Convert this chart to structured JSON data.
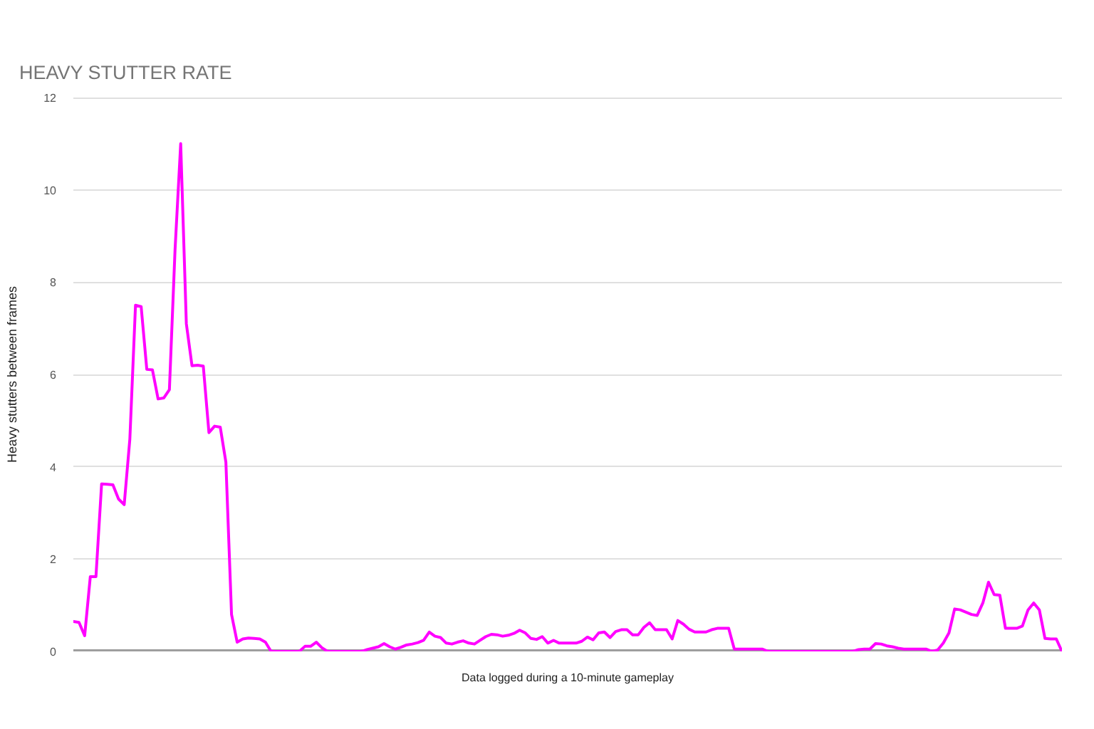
{
  "chart_data": {
    "type": "line",
    "title": "HEAVY STUTTER RATE",
    "xlabel": "Data logged during a 10-minute gameplay",
    "ylabel": "Heavy stutters between frames",
    "categories": [
      null,
      null,
      null,
      null,
      null,
      null,
      null,
      null,
      null,
      null,
      null,
      null,
      null,
      null,
      null,
      null,
      null,
      null,
      null,
      null,
      null,
      null,
      null,
      null,
      null,
      null,
      null,
      null,
      null,
      null,
      null,
      null,
      null,
      null,
      null,
      null,
      null,
      null,
      null,
      null,
      null,
      null,
      null,
      null,
      null,
      null,
      null,
      null,
      null,
      null,
      null,
      null,
      null,
      null,
      null,
      null,
      null,
      null,
      null,
      null,
      null,
      null,
      null,
      null,
      null,
      null,
      null,
      null,
      null,
      null,
      null,
      null,
      null,
      null,
      null,
      null,
      null,
      null,
      null,
      null,
      null,
      null,
      null,
      null,
      null,
      null,
      null,
      null,
      null,
      null,
      null,
      null,
      null,
      null,
      null,
      null,
      null,
      null,
      null,
      null,
      null,
      null,
      null,
      null,
      null,
      null,
      null,
      null,
      null,
      null,
      null,
      null,
      null,
      null,
      null,
      null,
      null,
      null,
      null,
      null,
      null,
      null,
      null,
      null,
      null,
      null,
      null,
      null,
      null,
      null,
      null,
      null,
      null,
      null,
      null,
      null,
      null,
      null,
      null,
      null,
      null,
      null,
      null,
      null,
      null,
      null,
      null,
      null,
      null,
      null,
      null,
      null,
      null,
      null,
      null,
      null,
      null,
      null,
      null,
      null,
      null,
      null,
      null,
      null,
      null,
      null,
      null,
      null,
      null,
      null,
      null,
      null,
      null,
      null,
      null,
      null
    ],
    "series": [
      {
        "color": "#ff00ff",
        "values": [
          0.65,
          0.63,
          0.34,
          1.62,
          1.62,
          3.63,
          3.62,
          3.61,
          3.3,
          3.18,
          4.6,
          7.5,
          7.47,
          6.11,
          6.1,
          5.47,
          5.49,
          5.67,
          8.7,
          11.0,
          7.1,
          6.19,
          6.2,
          6.18,
          4.74,
          4.88,
          4.86,
          4.1,
          0.8,
          0.2,
          0.27,
          0.29,
          0.28,
          0.27,
          0.2,
          0,
          0,
          0,
          0,
          0,
          0,
          0.11,
          0.11,
          0.2,
          0.08,
          0,
          0,
          0,
          0,
          0,
          0,
          0,
          0.04,
          0.07,
          0.1,
          0.17,
          0.1,
          0.05,
          0.09,
          0.14,
          0.16,
          0.19,
          0.24,
          0.42,
          0.33,
          0.3,
          0.18,
          0.16,
          0.2,
          0.23,
          0.18,
          0.16,
          0.24,
          0.32,
          0.37,
          0.36,
          0.33,
          0.35,
          0.39,
          0.46,
          0.4,
          0.28,
          0.26,
          0.32,
          0.18,
          0.24,
          0.18,
          0.18,
          0.18,
          0.18,
          0.22,
          0.31,
          0.25,
          0.4,
          0.42,
          0.3,
          0.43,
          0.47,
          0.47,
          0.36,
          0.36,
          0.52,
          0.62,
          0.47,
          0.47,
          0.47,
          0.27,
          0.67,
          0.59,
          0.48,
          0.42,
          0.42,
          0.42,
          0.47,
          0.5,
          0.5,
          0.5,
          0.05,
          0.05,
          0.05,
          0.05,
          0.05,
          0.05,
          0,
          0,
          0,
          0,
          0,
          0,
          0,
          0,
          0,
          0,
          0,
          0,
          0,
          0,
          0,
          0,
          0.04,
          0.05,
          0.05,
          0.17,
          0.16,
          0.12,
          0.1,
          0.07,
          0.05,
          0.05,
          0.05,
          0.05,
          0.05,
          0,
          0.03,
          0.18,
          0.4,
          0.92,
          0.9,
          0.85,
          0.8,
          0.78,
          1.05,
          1.5,
          1.23,
          1.22,
          0.5,
          0.5,
          0.5,
          0.55,
          0.9,
          1.05,
          0.9,
          0.28,
          0.27,
          0.27,
          0
        ]
      }
    ],
    "ylim": [
      0,
      12
    ],
    "yticks": [
      0,
      2,
      4,
      6,
      8,
      10,
      12
    ],
    "grid": "y",
    "tick_labels": "y",
    "line_style": "solid"
  }
}
